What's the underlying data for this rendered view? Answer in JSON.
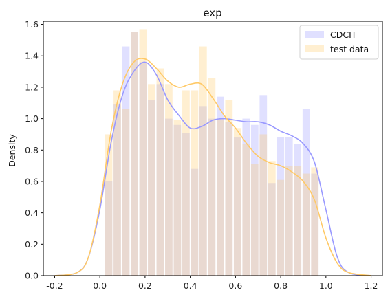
{
  "chart_data": {
    "type": "bar",
    "title": "exp",
    "xlabel": "",
    "ylabel": "Density",
    "xlim": [
      -0.25,
      1.25
    ],
    "ylim": [
      0,
      1.62
    ],
    "xticks": [
      -0.2,
      0.0,
      0.2,
      0.4,
      0.6,
      0.8,
      1.0,
      1.2
    ],
    "yticks": [
      0.0,
      0.2,
      0.4,
      0.6,
      0.8,
      1.0,
      1.2,
      1.4,
      1.6
    ],
    "grid": false,
    "legend_position": "top-right",
    "bin_edges": [
      0.02,
      0.058,
      0.096,
      0.134,
      0.172,
      0.21,
      0.248,
      0.286,
      0.324,
      0.362,
      0.4,
      0.438,
      0.476,
      0.514,
      0.552,
      0.59,
      0.628,
      0.666,
      0.704,
      0.742,
      0.78,
      0.818,
      0.856,
      0.894,
      0.932,
      0.97
    ],
    "series": [
      {
        "name": "CDCIT",
        "kind": "histogram",
        "color": "#9999ff",
        "values": [
          0.6,
          1.09,
          1.46,
          1.55,
          1.36,
          1.12,
          1.22,
          1.0,
          0.96,
          0.91,
          0.68,
          1.08,
          1.0,
          1.14,
          0.98,
          0.88,
          1.0,
          0.96,
          1.15,
          0.59,
          0.88,
          0.88,
          0.84,
          1.06,
          0.65
        ],
        "kde_x": [
          -0.2,
          -0.1,
          -0.05,
          0.0,
          0.05,
          0.1,
          0.15,
          0.2,
          0.25,
          0.3,
          0.35,
          0.4,
          0.45,
          0.5,
          0.55,
          0.6,
          0.65,
          0.7,
          0.75,
          0.8,
          0.85,
          0.9,
          0.95,
          1.0,
          1.05,
          1.1,
          1.2
        ],
        "kde_y": [
          0.0,
          0.02,
          0.12,
          0.42,
          0.85,
          1.15,
          1.3,
          1.36,
          1.28,
          1.12,
          1.02,
          0.94,
          0.95,
          0.99,
          1.0,
          0.99,
          0.98,
          0.98,
          0.96,
          0.92,
          0.89,
          0.84,
          0.72,
          0.42,
          0.12,
          0.02,
          0.0
        ]
      },
      {
        "name": "test data",
        "kind": "histogram",
        "color": "#ffc966",
        "values": [
          0.9,
          1.18,
          1.06,
          1.55,
          1.57,
          1.22,
          1.32,
          1.22,
          0.99,
          1.18,
          1.18,
          1.46,
          1.26,
          1.0,
          1.12,
          0.94,
          0.84,
          0.71,
          0.9,
          0.73,
          0.61,
          0.7,
          0.7,
          0.65,
          0.69
        ],
        "kde_x": [
          -0.2,
          -0.1,
          -0.05,
          0.0,
          0.05,
          0.1,
          0.15,
          0.2,
          0.25,
          0.3,
          0.35,
          0.4,
          0.45,
          0.5,
          0.55,
          0.6,
          0.65,
          0.7,
          0.75,
          0.8,
          0.85,
          0.9,
          0.95,
          1.0,
          1.05,
          1.1,
          1.2
        ],
        "kde_y": [
          0.0,
          0.02,
          0.12,
          0.45,
          0.92,
          1.22,
          1.36,
          1.38,
          1.32,
          1.24,
          1.2,
          1.22,
          1.22,
          1.13,
          1.02,
          0.94,
          0.84,
          0.76,
          0.72,
          0.7,
          0.66,
          0.6,
          0.48,
          0.24,
          0.08,
          0.02,
          0.0
        ]
      }
    ]
  }
}
